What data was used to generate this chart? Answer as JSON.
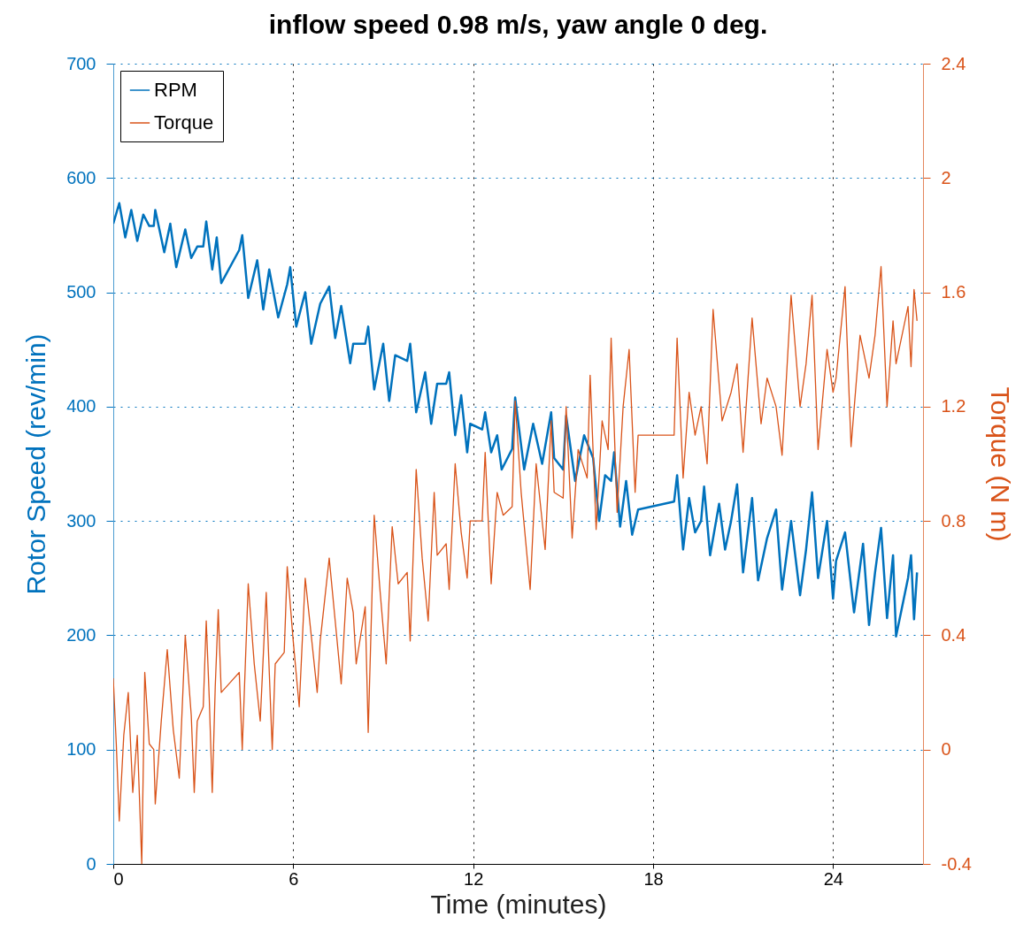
{
  "chart_data": {
    "type": "line",
    "title": "inflow speed 0.98 m/s, yaw angle 0 deg.",
    "xlabel": "Time (minutes)",
    "ylabel": "Rotor Speed (rev/min)",
    "y2label": "Torque (N m)",
    "xlim": [
      0,
      27
    ],
    "xticks": [
      0,
      6,
      12,
      18,
      24
    ],
    "ylim": [
      0,
      700
    ],
    "yticks": [
      0,
      100,
      200,
      300,
      400,
      500,
      600,
      700
    ],
    "y2lim": [
      -0.4,
      2.4
    ],
    "y2ticks": [
      -0.4,
      0,
      0.4,
      0.8,
      1.2,
      1.6,
      2,
      2.4
    ],
    "grid": true,
    "legend": "top left",
    "marker": "none",
    "line_style": "solid",
    "series": [
      {
        "name": "RPM",
        "color": "#0072bd",
        "x": [
          0,
          0.2,
          0.4,
          0.6,
          0.8,
          1.0,
          1.2,
          1.35,
          1.4,
          1.7,
          1.9,
          2.1,
          2.4,
          2.6,
          2.8,
          3.0,
          3.1,
          3.3,
          3.45,
          3.6,
          4.2,
          4.3,
          4.5,
          4.8,
          5.0,
          5.2,
          5.5,
          5.8,
          5.9,
          6.1,
          6.4,
          6.6,
          6.9,
          7.2,
          7.4,
          7.6,
          7.9,
          8.0,
          8.4,
          8.5,
          8.7,
          9.0,
          9.2,
          9.4,
          9.8,
          9.9,
          10.1,
          10.4,
          10.6,
          10.8,
          11.1,
          11.2,
          11.4,
          11.6,
          11.8,
          11.9,
          12.3,
          12.4,
          12.6,
          12.8,
          12.95,
          13.3,
          13.4,
          13.7,
          14.0,
          14.3,
          14.6,
          14.7,
          15.0,
          15.1,
          15.4,
          15.7,
          16.0,
          16.2,
          16.4,
          16.6,
          16.7,
          16.9,
          17.1,
          17.3,
          17.5,
          18.7,
          18.8,
          19.0,
          19.2,
          19.4,
          19.6,
          19.7,
          19.9,
          20.2,
          20.4,
          20.6,
          20.8,
          21.0,
          21.3,
          21.5,
          21.8,
          22.1,
          22.3,
          22.6,
          22.9,
          23.1,
          23.3,
          23.5,
          23.8,
          24.0,
          24.1,
          24.4,
          24.7,
          25.0,
          25.2,
          25.4,
          25.6,
          25.8,
          26.0,
          26.1,
          26.5,
          26.6,
          26.7,
          26.8
        ],
        "values": [
          560,
          578,
          548,
          572,
          545,
          568,
          558,
          558,
          572,
          535,
          560,
          522,
          555,
          530,
          540,
          540,
          562,
          520,
          548,
          508,
          537,
          550,
          495,
          528,
          485,
          520,
          478,
          507,
          522,
          470,
          500,
          455,
          490,
          505,
          460,
          488,
          438,
          455,
          455,
          470,
          415,
          455,
          405,
          445,
          440,
          455,
          395,
          430,
          385,
          420,
          420,
          430,
          375,
          410,
          360,
          385,
          380,
          395,
          360,
          375,
          345,
          363,
          408,
          345,
          385,
          350,
          395,
          355,
          345,
          392,
          335,
          375,
          355,
          300,
          340,
          335,
          360,
          295,
          335,
          288,
          310,
          317,
          340,
          275,
          320,
          290,
          300,
          330,
          270,
          315,
          275,
          300,
          332,
          255,
          320,
          248,
          285,
          310,
          240,
          300,
          235,
          275,
          325,
          250,
          300,
          232,
          265,
          290,
          220,
          280,
          209,
          255,
          294,
          215,
          270,
          199,
          250,
          270,
          214,
          255
        ]
      },
      {
        "name": "Torque",
        "color": "#d95319",
        "axis": "y2",
        "x": [
          0,
          0.1,
          0.2,
          0.35,
          0.5,
          0.65,
          0.8,
          0.95,
          1.05,
          1.2,
          1.35,
          1.4,
          1.6,
          1.8,
          2.0,
          2.2,
          2.4,
          2.6,
          2.7,
          2.8,
          3.0,
          3.1,
          3.2,
          3.3,
          3.4,
          3.5,
          3.6,
          4.2,
          4.3,
          4.5,
          4.7,
          4.9,
          5.1,
          5.3,
          5.4,
          5.7,
          5.8,
          6.0,
          6.2,
          6.4,
          6.6,
          6.8,
          6.9,
          7.2,
          7.4,
          7.6,
          7.8,
          8.0,
          8.1,
          8.4,
          8.5,
          8.7,
          8.9,
          9.1,
          9.3,
          9.5,
          9.8,
          9.9,
          10.1,
          10.3,
          10.5,
          10.7,
          10.8,
          11.1,
          11.2,
          11.4,
          11.6,
          11.8,
          11.9,
          12.3,
          12.4,
          12.6,
          12.8,
          13.0,
          13.3,
          13.4,
          13.6,
          13.9,
          14.1,
          14.4,
          14.6,
          14.7,
          15.0,
          15.1,
          15.3,
          15.5,
          15.8,
          15.9,
          16.1,
          16.3,
          16.5,
          16.6,
          16.8,
          17.0,
          17.2,
          17.4,
          17.5,
          18.7,
          18.8,
          19.0,
          19.2,
          19.4,
          19.6,
          19.8,
          20.0,
          20.3,
          20.6,
          20.8,
          21.0,
          21.3,
          21.6,
          21.8,
          22.1,
          22.3,
          22.6,
          22.9,
          23.1,
          23.3,
          23.5,
          23.8,
          24.0,
          24.1,
          24.4,
          24.6,
          24.9,
          25.2,
          25.4,
          25.6,
          25.8,
          26.0,
          26.1,
          26.5,
          26.6,
          26.7,
          26.8
        ],
        "values": [
          0.25,
          0.02,
          -0.25,
          0.05,
          0.2,
          -0.15,
          0.05,
          -0.4,
          0.27,
          0.02,
          0.0,
          -0.19,
          0.1,
          0.35,
          0.07,
          -0.1,
          0.4,
          0.12,
          -0.15,
          0.1,
          0.15,
          0.45,
          0.18,
          -0.15,
          0.22,
          0.49,
          0.2,
          0.27,
          0.0,
          0.58,
          0.3,
          0.1,
          0.55,
          0.0,
          0.3,
          0.34,
          0.64,
          0.38,
          0.15,
          0.6,
          0.4,
          0.2,
          0.38,
          0.67,
          0.45,
          0.23,
          0.6,
          0.48,
          0.3,
          0.5,
          0.06,
          0.82,
          0.55,
          0.3,
          0.78,
          0.58,
          0.62,
          0.38,
          0.98,
          0.67,
          0.45,
          0.9,
          0.68,
          0.72,
          0.56,
          1.0,
          0.76,
          0.6,
          0.8,
          0.8,
          1.04,
          0.58,
          0.9,
          0.82,
          0.85,
          1.22,
          0.9,
          0.56,
          1.0,
          0.7,
          1.15,
          0.9,
          0.88,
          1.2,
          0.74,
          1.05,
          0.95,
          1.31,
          0.77,
          1.15,
          1.05,
          1.44,
          0.83,
          1.2,
          1.4,
          0.9,
          1.1,
          1.1,
          1.44,
          0.95,
          1.25,
          1.1,
          1.2,
          1.0,
          1.54,
          1.15,
          1.25,
          1.35,
          1.04,
          1.51,
          1.14,
          1.3,
          1.2,
          1.03,
          1.59,
          1.2,
          1.35,
          1.59,
          1.05,
          1.4,
          1.25,
          1.3,
          1.62,
          1.06,
          1.45,
          1.3,
          1.45,
          1.69,
          1.2,
          1.5,
          1.35,
          1.55,
          1.34,
          1.61,
          1.5
        ]
      }
    ]
  }
}
